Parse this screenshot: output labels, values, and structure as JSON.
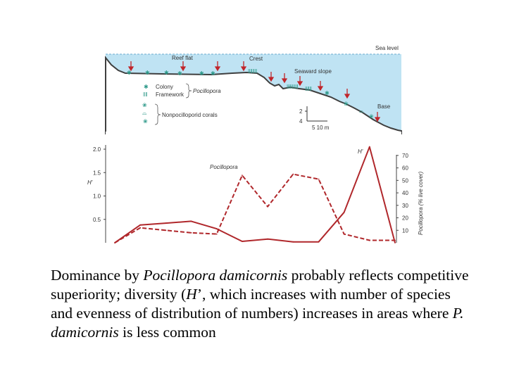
{
  "colors": {
    "water": "#bfe3f3",
    "reef": "#3f3f3f",
    "colony": "#2f9a8a",
    "arrow": "#c0252a",
    "line": "#b0272b"
  },
  "profile": {
    "sea_level": "Sea level",
    "zones": [
      "Reef flat",
      "Crest",
      "Seaward slope",
      "Base"
    ],
    "legend": {
      "colony": "Colony",
      "framework": "Framework",
      "pocillopora": "Pocillopora",
      "nonpocilloporid": "Nonpocilloporid corals"
    },
    "scale_depth": [
      "2",
      "4"
    ],
    "scale_distance": "5  10 m"
  },
  "chart_data": {
    "type": "line",
    "x": [
      1,
      2,
      3,
      4,
      5,
      6,
      7,
      8,
      9,
      10,
      11,
      12
    ],
    "series": [
      {
        "name": "H'",
        "axis": "left",
        "style": "solid",
        "values": [
          0.0,
          0.38,
          0.42,
          0.46,
          0.3,
          0.03,
          0.08,
          0.02,
          0.02,
          0.65,
          2.05,
          0.0
        ]
      },
      {
        "name": "Pocillopora",
        "axis": "right",
        "style": "dashed",
        "values": [
          0,
          12,
          10,
          8,
          7,
          54,
          29,
          55,
          51,
          7,
          2,
          2
        ]
      }
    ],
    "ylabel": "H'",
    "ylabel_right": "Pocillopora (% live cover)",
    "yticks": [
      "0.5",
      "1.0",
      "1.5",
      "2.0"
    ],
    "ylim": [
      0,
      2.0
    ],
    "yticks_right": [
      "10",
      "20",
      "30",
      "40",
      "50",
      "60",
      "70"
    ],
    "ylim_right": [
      0,
      75
    ],
    "grid": false,
    "legend": "inline labels"
  },
  "caption": {
    "t1": "Dominance by ",
    "i1": "Pocillopora damicornis",
    "t2": " probably reflects competitive superiority; diversity (",
    "i2": "H",
    "t3": "’, which increases with number of species and evenness of distribution of numbers) increases in areas where ",
    "i3": "P. damicornis",
    "t4": " is less common"
  }
}
